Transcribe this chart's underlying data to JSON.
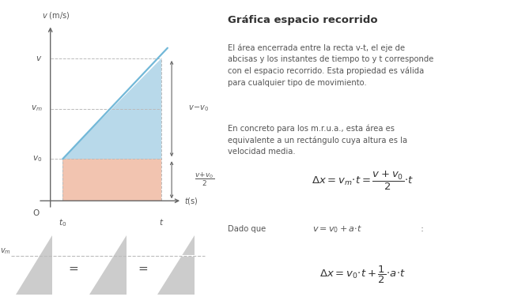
{
  "bg_color": "#ffffff",
  "title": "Gráfica espacio recorrido",
  "text1": "El área encerrada entre la recta v-t, el eje de\nabcisas y los instantes de tiempo to y t corresponde\ncon el espacio recorrido. Esta propiedad es válida\npara cualquier tipo de movimiento.",
  "text2": "En concreto para los m.r.u.a., esta área es\nequivalente a un rectángulo cuya altura es la\nvelocidad media.",
  "blue_fill": "#b8d9ea",
  "red_fill": "#f2c4b0",
  "axis_color": "#666666",
  "dashed_color": "#bbbbbb",
  "line_color": "#72b8d8",
  "small_tri_gray": "#cccccc",
  "text_color": "#555555",
  "title_color": "#333333"
}
